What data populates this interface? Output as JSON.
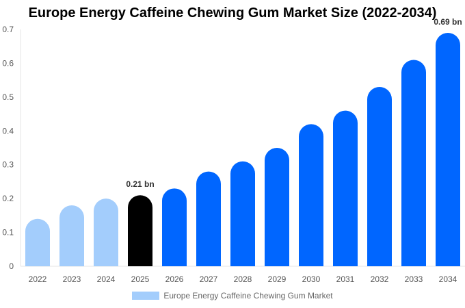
{
  "chart_data": {
    "type": "bar",
    "title": "Europe Energy Caffeine Chewing Gum Market Size (2022-2034)",
    "categories": [
      "2022",
      "2023",
      "2024",
      "2025",
      "2026",
      "2027",
      "2028",
      "2029",
      "2030",
      "2031",
      "2032",
      "2033",
      "2034"
    ],
    "series": [
      {
        "name": "Europe Energy Caffeine Chewing Gum Market",
        "values": [
          0.14,
          0.18,
          0.2,
          0.21,
          0.23,
          0.28,
          0.31,
          0.35,
          0.42,
          0.46,
          0.53,
          0.61,
          0.69
        ]
      }
    ],
    "ylim": [
      0,
      0.7
    ],
    "yticks": [
      "0",
      "0.1",
      "0.2",
      "0.3",
      "0.4",
      "0.5",
      "0.6",
      "0.7"
    ],
    "data_labels": [
      {
        "category": "2025",
        "text": "0.21 bn"
      },
      {
        "category": "2034",
        "text": "0.69 bn"
      }
    ],
    "colors": {
      "historical": "#a3cdfc",
      "current": "#000000",
      "forecast": "#0066ff"
    },
    "grid": false,
    "legend": "bottom"
  }
}
